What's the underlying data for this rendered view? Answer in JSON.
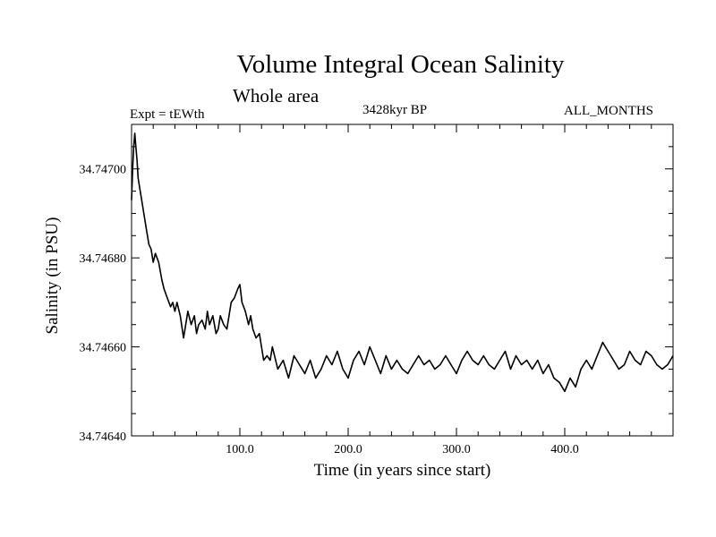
{
  "chart_data": {
    "type": "line",
    "title": "Volume Integral Ocean Salinity",
    "subtitle": "Whole area",
    "experiment": "Expt = tEWth",
    "epoch": "3428kyr BP",
    "months": "ALL_MONTHS",
    "xlabel": "Time (in years since start)",
    "ylabel": "Salinity (in PSU)",
    "xlim": [
      0,
      500
    ],
    "ylim": [
      34.7464,
      34.7471
    ],
    "xticks": [
      100,
      200,
      300,
      400
    ],
    "xtick_labels": [
      "100.0",
      "200.0",
      "300.0",
      "400.0"
    ],
    "yticks": [
      34.7464,
      34.7466,
      34.7468,
      34.747
    ],
    "ytick_labels": [
      "34.74640",
      "34.74660",
      "34.74680",
      "34.74700"
    ],
    "series": [
      {
        "name": "Salinity",
        "color": "#000000",
        "x": [
          0,
          1,
          2,
          3,
          4,
          5,
          6,
          8,
          10,
          12,
          14,
          16,
          18,
          20,
          22,
          25,
          28,
          30,
          33,
          36,
          38,
          40,
          42,
          45,
          48,
          50,
          52,
          55,
          58,
          60,
          62,
          65,
          68,
          70,
          72,
          75,
          78,
          80,
          82,
          85,
          88,
          90,
          92,
          95,
          98,
          100,
          102,
          105,
          108,
          110,
          112,
          115,
          118,
          120,
          122,
          125,
          128,
          130,
          135,
          140,
          145,
          150,
          155,
          160,
          165,
          170,
          175,
          180,
          185,
          190,
          195,
          200,
          205,
          210,
          215,
          220,
          225,
          230,
          235,
          240,
          245,
          250,
          255,
          260,
          265,
          270,
          275,
          280,
          285,
          290,
          295,
          300,
          305,
          310,
          315,
          320,
          325,
          330,
          335,
          340,
          345,
          350,
          355,
          360,
          365,
          370,
          375,
          380,
          385,
          390,
          395,
          400,
          405,
          410,
          415,
          420,
          425,
          430,
          435,
          440,
          445,
          450,
          455,
          460,
          465,
          470,
          475,
          480,
          485,
          490,
          495,
          500
        ],
        "y": [
          34.74693,
          34.747,
          34.74705,
          34.74708,
          34.74705,
          34.74702,
          34.74698,
          34.74695,
          34.74692,
          34.74689,
          34.74686,
          34.74683,
          34.74682,
          34.74679,
          34.74681,
          34.74679,
          34.74675,
          34.74673,
          34.74671,
          34.74669,
          34.7467,
          34.74668,
          34.7467,
          34.74667,
          34.74662,
          34.74665,
          34.74668,
          34.74665,
          34.74667,
          34.74663,
          34.74665,
          34.74666,
          34.74664,
          34.74668,
          34.74665,
          34.74667,
          34.74663,
          34.74664,
          34.74667,
          34.74665,
          34.74664,
          34.74667,
          34.7467,
          34.74671,
          34.74673,
          34.74674,
          34.7467,
          34.74668,
          34.74665,
          34.74667,
          34.74664,
          34.74662,
          34.74663,
          34.7466,
          34.74657,
          34.74658,
          34.74657,
          34.7466,
          34.74655,
          34.74657,
          34.74653,
          34.74658,
          34.74656,
          34.74654,
          34.74657,
          34.74653,
          34.74655,
          34.74658,
          34.74656,
          34.74659,
          34.74655,
          34.74653,
          34.74657,
          34.74659,
          34.74656,
          34.7466,
          34.74657,
          34.74654,
          34.74658,
          34.74655,
          34.74657,
          34.74655,
          34.74654,
          34.74656,
          34.74658,
          34.74656,
          34.74657,
          34.74655,
          34.74656,
          34.74658,
          34.74656,
          34.74654,
          34.74657,
          34.74659,
          34.74657,
          34.74656,
          34.74658,
          34.74656,
          34.74655,
          34.74657,
          34.74659,
          34.74655,
          34.74658,
          34.74656,
          34.74657,
          34.74655,
          34.74657,
          34.74654,
          34.74656,
          34.74653,
          34.74652,
          34.7465,
          34.74653,
          34.74651,
          34.74655,
          34.74657,
          34.74655,
          34.74658,
          34.74661,
          34.74659,
          34.74657,
          34.74655,
          34.74656,
          34.74659,
          34.74657,
          34.74656,
          34.74659,
          34.74658,
          34.74656,
          34.74655,
          34.74656,
          34.74658
        ]
      }
    ]
  }
}
